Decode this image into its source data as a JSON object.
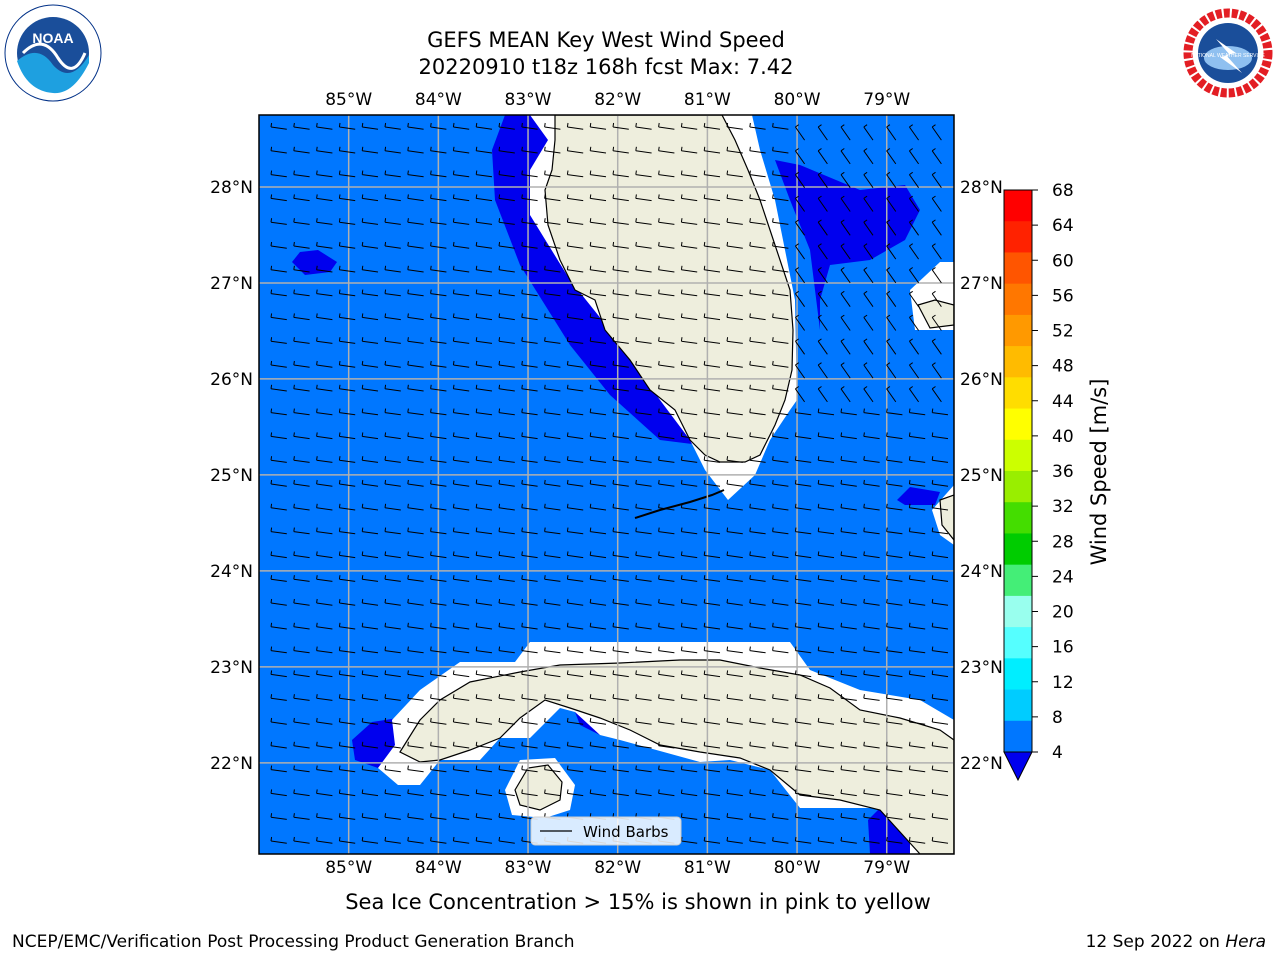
{
  "title": {
    "line1": "GEFS MEAN Key West Wind Speed",
    "line2": "20220910 t18z 168h fcst   Max: 7.42"
  },
  "logos": {
    "left": "noaa-logo",
    "right": "national-weather-service-logo",
    "left_text": "NOAA",
    "right_text": "NATIONAL WEATHER SERVICE"
  },
  "map": {
    "region": "Florida / Florida Keys / Cuba",
    "lon_labels": [
      "85°W",
      "84°W",
      "83°W",
      "82°W",
      "81°W",
      "80°W",
      "79°W"
    ],
    "lat_labels": [
      "28°N",
      "27°N",
      "26°N",
      "25°N",
      "24°N",
      "23°N",
      "22°N"
    ],
    "lon_range": [
      -86.0,
      -78.25
    ],
    "lat_range": [
      21.05,
      28.75
    ],
    "ocean_color": "#0077ff",
    "darker_band_color": "#0000ee",
    "land_color": "#eeeedd",
    "grid": true,
    "wind_barbs": "light easterly winds (~4 m/s) across domain",
    "legend": {
      "label": "Wind Barbs",
      "placement": "bottom-center"
    }
  },
  "colorbar": {
    "label": "Wind Speed [m/s]",
    "ticks": [
      "68",
      "64",
      "60",
      "56",
      "52",
      "48",
      "44",
      "40",
      "36",
      "32",
      "28",
      "24",
      "20",
      "16",
      "12",
      "8",
      "4"
    ],
    "colors": [
      "#ff0000",
      "#ff2200",
      "#ff5500",
      "#ff7700",
      "#ff9900",
      "#ffbb00",
      "#ffdd00",
      "#ffff00",
      "#ccff00",
      "#99ee00",
      "#44dd00",
      "#00cc00",
      "#44ee77",
      "#99ffee",
      "#55ffff",
      "#00eeff",
      "#00ccff",
      "#0077ff"
    ],
    "under_color": "#0000ee"
  },
  "caption": "Sea Ice Concentration > 15% is shown in pink to yellow",
  "footer": {
    "left": "NCEP/EMC/Verification Post Processing Product Generation Branch",
    "right_date": "12 Sep 2022 on",
    "right_host": "Hera"
  }
}
